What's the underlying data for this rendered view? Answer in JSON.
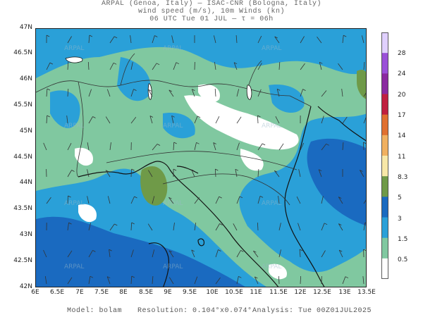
{
  "title": {
    "line1": "ARPAL (Genoa, Italy)  —  ISAC-CNR (Bologna, Italy)",
    "line2": "wind speed (m/s), 10m Winds (kn)",
    "line3": "06 UTC Tue 01 JUL  —  τ = 06h"
  },
  "map": {
    "lat_labels": [
      "47N",
      "46.5N",
      "46N",
      "45.5N",
      "45N",
      "44.5N",
      "44N",
      "43.5N",
      "43N",
      "42.5N",
      "42N"
    ],
    "lon_labels": [
      "6E",
      "6.5E",
      "7E",
      "7.5E",
      "8E",
      "8.5E",
      "9E",
      "9.5E",
      "10E",
      "10.5E",
      "11E",
      "11.5E",
      "12E",
      "12.5E",
      "13E",
      "13.5E"
    ],
    "watermark": "ARPAL",
    "colors": {
      "low": "#ffffff",
      "mid": "#80c8a0",
      "high": "#2aa0d8",
      "max": "#1a6ac0",
      "olive": "#6f9a48"
    }
  },
  "colorbar": {
    "labels": [
      "28",
      "24",
      "20",
      "17",
      "14",
      "11",
      "8.3",
      "5",
      "3",
      "1.5",
      "0.5"
    ],
    "colors": [
      "#e0d0ff",
      "#9a50d8",
      "#8a2aa0",
      "#c02040",
      "#e07030",
      "#f0b060",
      "#f8e8a8",
      "#6f9a48",
      "#1a6ac0",
      "#2aa0d8",
      "#80c8a0",
      "#ffffff"
    ]
  },
  "footer": {
    "model": "Model: bolam",
    "resolution": "Resolution: 0.104°x0.074°",
    "analysis": "Analysis: Tue 00Z01JUL2025"
  }
}
